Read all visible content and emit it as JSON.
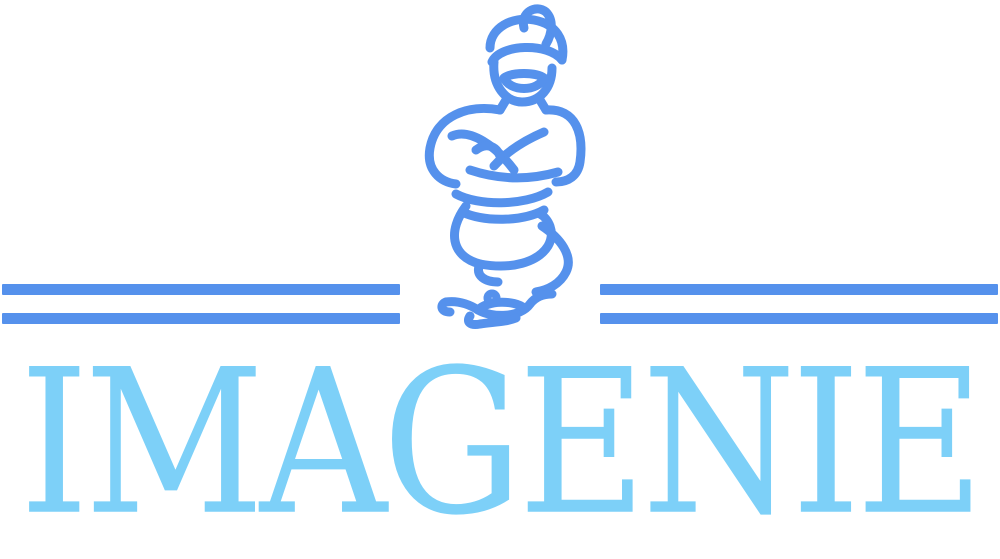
{
  "brand": {
    "name": "IMAGENIE"
  },
  "colors": {
    "primary": "#5591ec",
    "wordmark": "#7dd0f8",
    "background": "#ffffff"
  },
  "icons": {
    "mascot": "genie-icon",
    "lamp": "magic-lamp-icon"
  }
}
